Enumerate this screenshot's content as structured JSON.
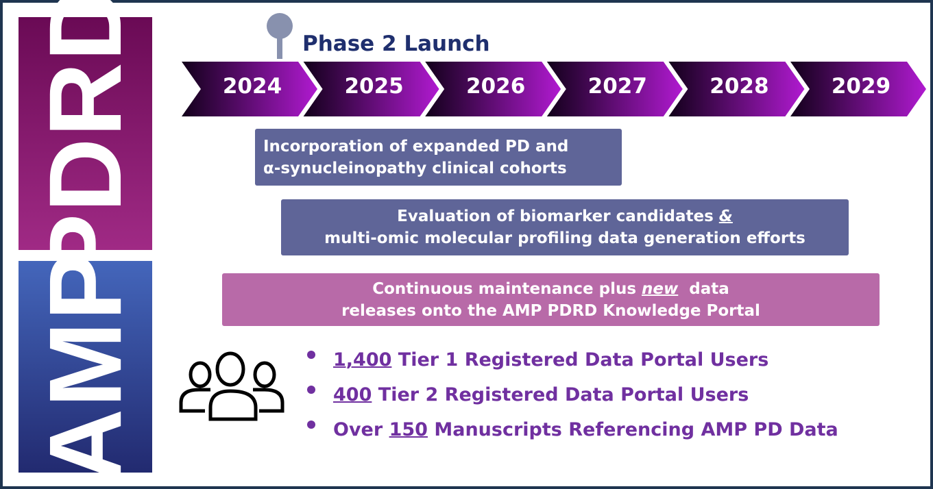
{
  "side_banner": {
    "top": "PDRD",
    "bottom": "AMP"
  },
  "milestone": {
    "label": "Phase 2 Launch",
    "year": "2024"
  },
  "years": [
    "2024",
    "2025",
    "2026",
    "2027",
    "2028",
    "2029"
  ],
  "workstreams": [
    {
      "line1": "Incorporation of expanded PD and",
      "line2": "α-synucleinopathy clinical cohorts"
    },
    {
      "line1_pre": "Evaluation of biomarker candidates ",
      "line1_em": "&",
      "line2": "multi-omic molecular profiling data generation efforts"
    },
    {
      "line1_pre": "Continuous maintenance plus ",
      "line1_em": "new",
      "line1_post": "  data",
      "line2": "releases onto the AMP PDRD Knowledge Portal"
    }
  ],
  "stats": [
    {
      "pre": "",
      "num": "1,400",
      "post": " Tier 1 Registered Data Portal Users"
    },
    {
      "pre": "",
      "num": "400",
      "post": " Tier 2 Registered Data Portal Users"
    },
    {
      "pre": "Over ",
      "num": "150",
      "post": " Manuscripts Referencing AMP PD Data"
    }
  ],
  "icons": {
    "milestone": "pin-icon",
    "users": "users-group-icon"
  },
  "colors": {
    "pdrd": "#8a1a70",
    "amp": "#3a4ea0",
    "chevron_start": "#12001a",
    "chevron_end": "#b01ad0",
    "box_blue": "#5f6598",
    "box_pink": "#b86aa8",
    "stat_text": "#7030a0",
    "phase_text": "#1f2f6e"
  }
}
